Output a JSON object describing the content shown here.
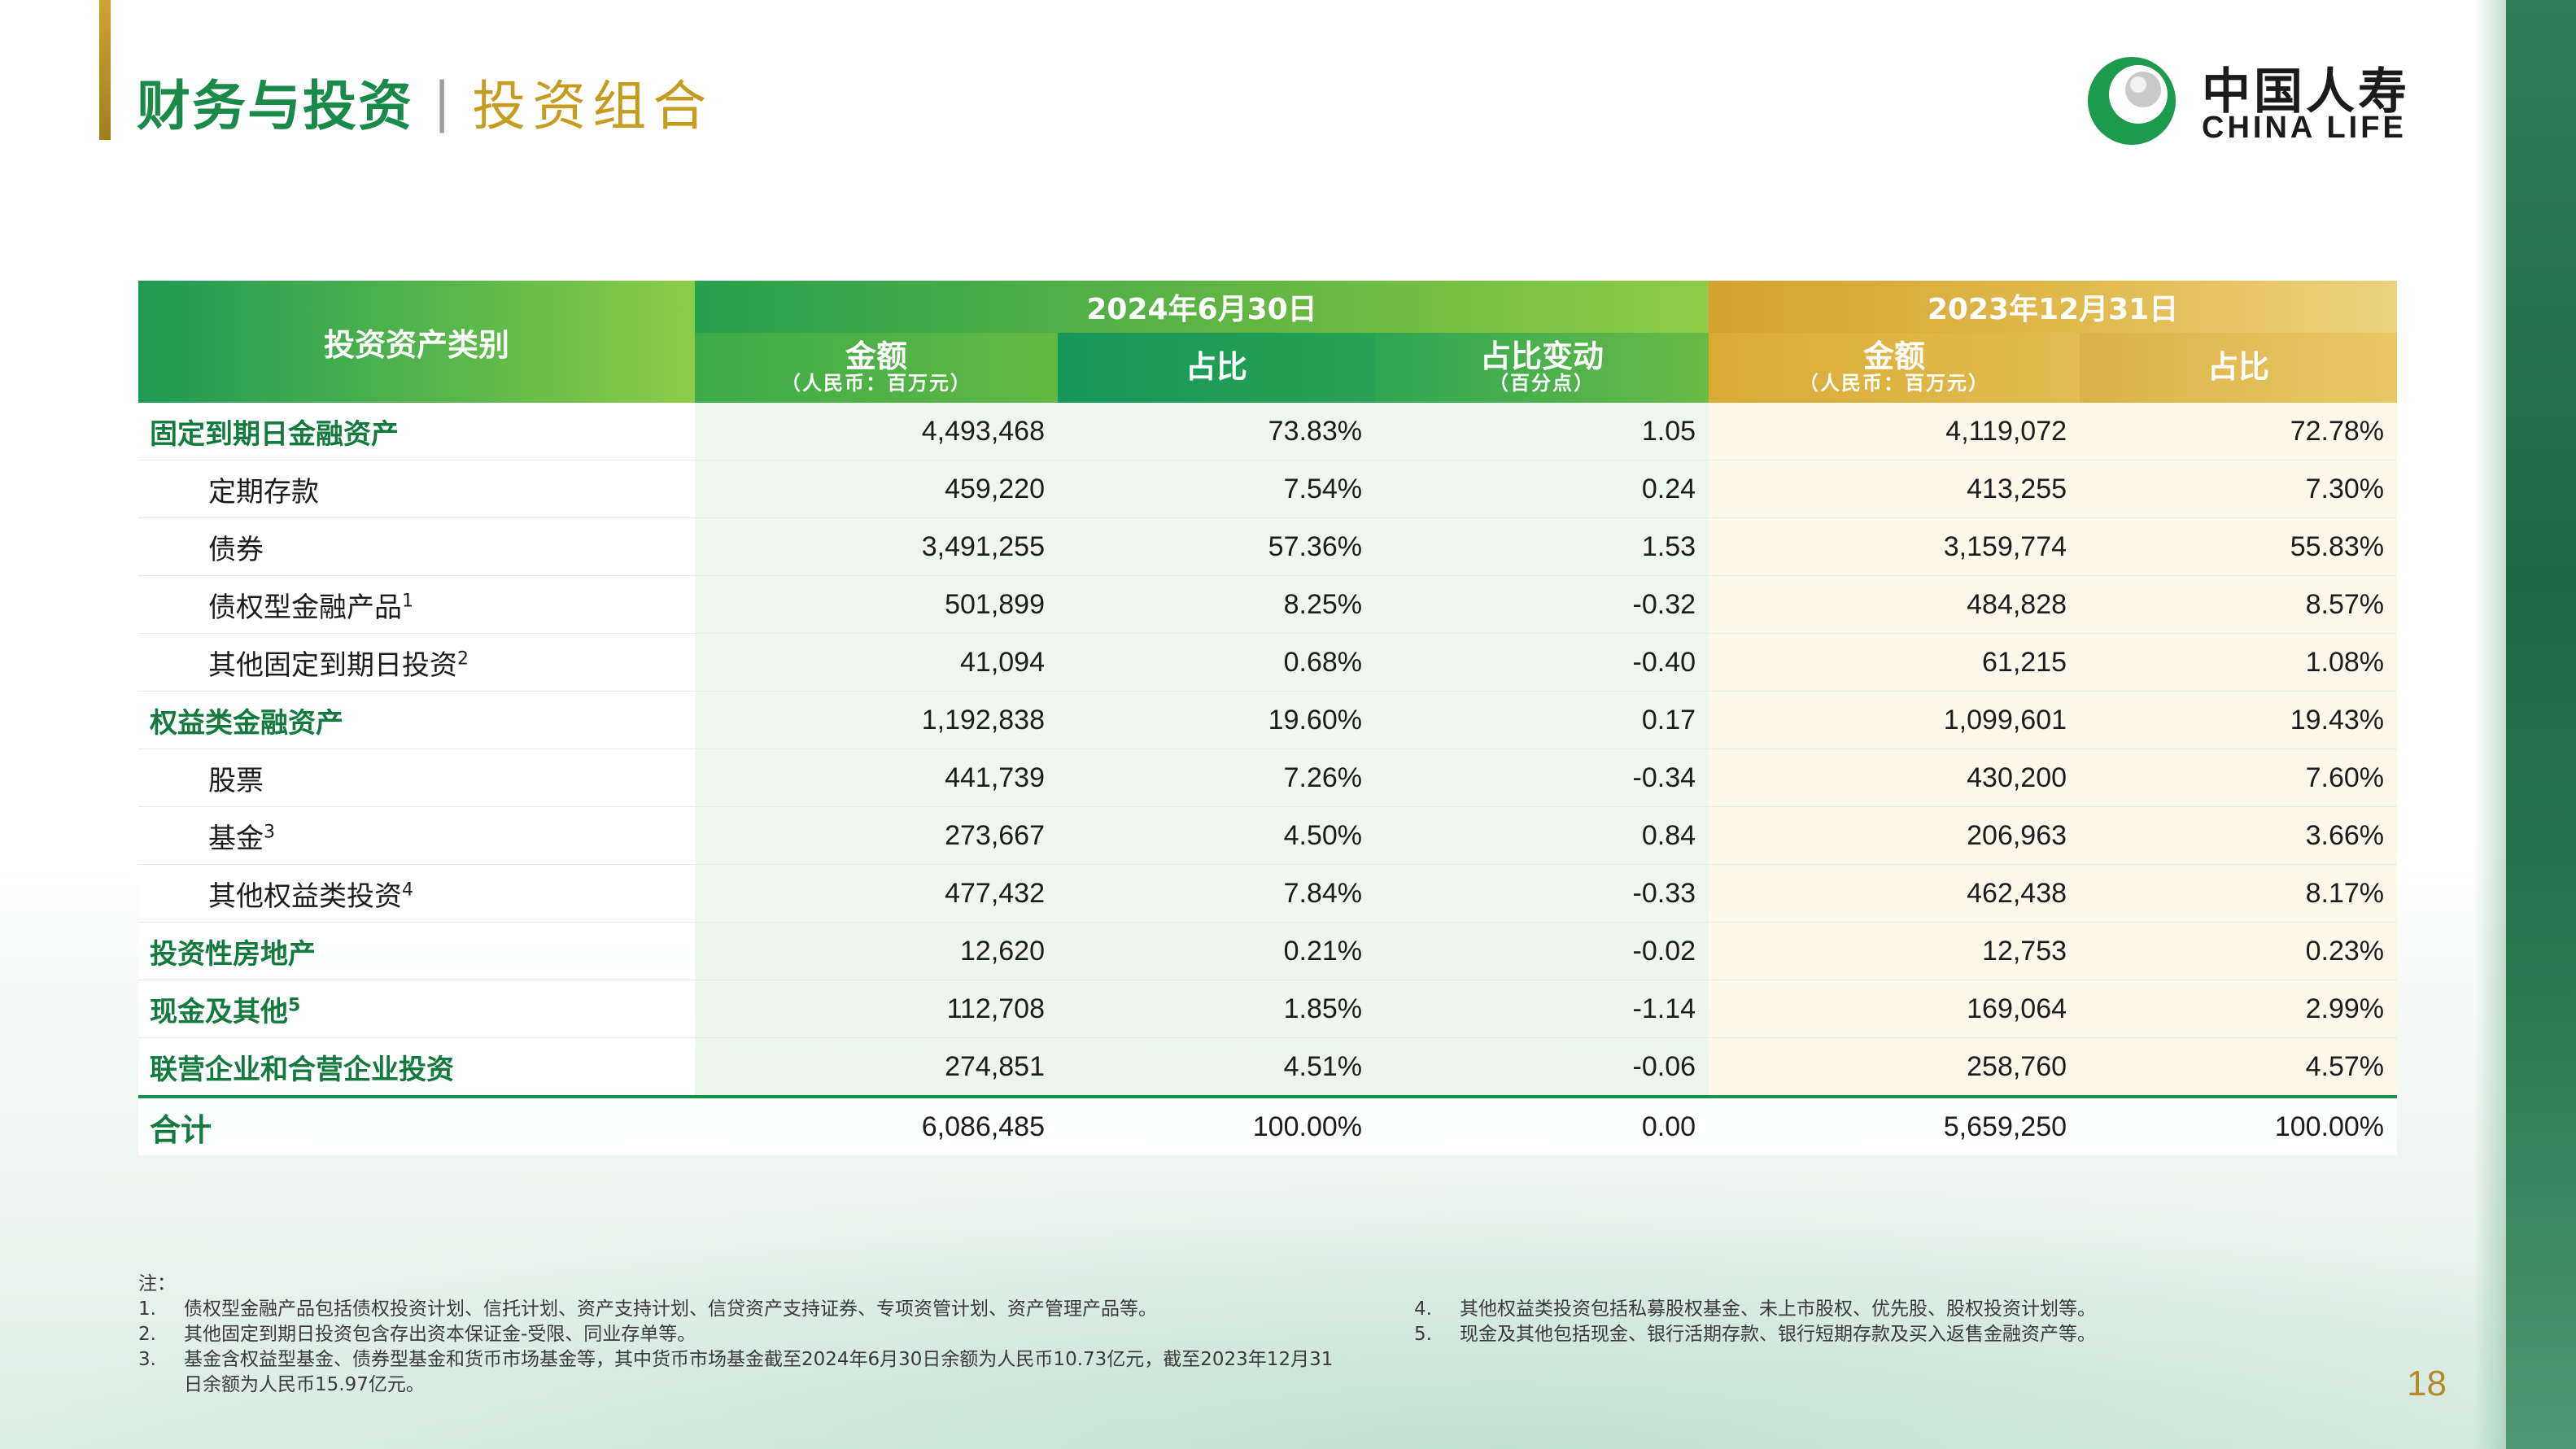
{
  "header": {
    "title": "财务与投资",
    "separator": "|",
    "subtitle": "投资组合"
  },
  "logo": {
    "cn": "中国人寿",
    "en": "CHINA LIFE"
  },
  "colors": {
    "brand_green": "#1a8a4a",
    "gold": "#c59b20",
    "header_green": "#3cab48",
    "header_gold": "#d9ab35"
  },
  "table": {
    "category_header": "投资资产类别",
    "period_a": "2024年6月30日",
    "period_b": "2023年12月31日",
    "col_amount": "金额",
    "col_amount_unit": "（人民币：百万元）",
    "col_share": "占比",
    "col_change": "占比变动",
    "col_change_unit": "（百分点）",
    "rows": [
      {
        "label": "固定到期日金融资产",
        "sup": "",
        "a_amount": "4,493,468",
        "a_share": "73.83%",
        "change": "1.05",
        "b_amount": "4,119,072",
        "b_share": "72.78%"
      },
      {
        "label": "定期存款",
        "sup": "",
        "a_amount": "459,220",
        "a_share": "7.54%",
        "change": "0.24",
        "b_amount": "413,255",
        "b_share": "7.30%"
      },
      {
        "label": "债券",
        "sup": "",
        "a_amount": "3,491,255",
        "a_share": "57.36%",
        "change": "1.53",
        "b_amount": "3,159,774",
        "b_share": "55.83%"
      },
      {
        "label": "债权型金融产品",
        "sup": "1",
        "a_amount": "501,899",
        "a_share": "8.25%",
        "change": "-0.32",
        "b_amount": "484,828",
        "b_share": "8.57%"
      },
      {
        "label": "其他固定到期日投资",
        "sup": "2",
        "a_amount": "41,094",
        "a_share": "0.68%",
        "change": "-0.40",
        "b_amount": "61,215",
        "b_share": "1.08%"
      },
      {
        "label": "权益类金融资产",
        "sup": "",
        "a_amount": "1,192,838",
        "a_share": "19.60%",
        "change": "0.17",
        "b_amount": "1,099,601",
        "b_share": "19.43%"
      },
      {
        "label": "股票",
        "sup": "",
        "a_amount": "441,739",
        "a_share": "7.26%",
        "change": "-0.34",
        "b_amount": "430,200",
        "b_share": "7.60%"
      },
      {
        "label": "基金",
        "sup": "3",
        "a_amount": "273,667",
        "a_share": "4.50%",
        "change": "0.84",
        "b_amount": "206,963",
        "b_share": "3.66%"
      },
      {
        "label": "其他权益类投资",
        "sup": "4",
        "a_amount": "477,432",
        "a_share": "7.84%",
        "change": "-0.33",
        "b_amount": "462,438",
        "b_share": "8.17%"
      },
      {
        "label": "投资性房地产",
        "sup": "",
        "a_amount": "12,620",
        "a_share": "0.21%",
        "change": "-0.02",
        "b_amount": "12,753",
        "b_share": "0.23%"
      },
      {
        "label": "现金及其他",
        "sup": "5",
        "a_amount": "112,708",
        "a_share": "1.85%",
        "change": "-1.14",
        "b_amount": "169,064",
        "b_share": "2.99%"
      },
      {
        "label": "联营企业和合营企业投资",
        "sup": "",
        "a_amount": "274,851",
        "a_share": "4.51%",
        "change": "-0.06",
        "b_amount": "258,760",
        "b_share": "4.57%"
      }
    ],
    "total": {
      "label": "合计",
      "a_amount": "6,086,485",
      "a_share": "100.00%",
      "change": "0.00",
      "b_amount": "5,659,250",
      "b_share": "100.00%"
    }
  },
  "notes": {
    "heading": "注：",
    "items": [
      {
        "num": "1.",
        "text": "债权型金融产品包括债权投资计划、信托计划、资产支持计划、信贷资产支持证券、专项资管计划、资产管理产品等。"
      },
      {
        "num": "2.",
        "text": "其他固定到期日投资包含存出资本保证金-受限、同业存单等。"
      },
      {
        "num": "3.",
        "text": "基金含权益型基金、债券型基金和货币市场基金等，其中货币市场基金截至2024年6月30日余额为人民币10.73亿元，截至2023年12月31日余额为人民币15.97亿元。"
      },
      {
        "num": "4.",
        "text": "其他权益类投资包括私募股权基金、未上市股权、优先股、股权投资计划等。"
      },
      {
        "num": "5.",
        "text": "现金及其他包括现金、银行活期存款、银行短期存款及买入返售金融资产等。"
      }
    ]
  },
  "page_number": "18"
}
